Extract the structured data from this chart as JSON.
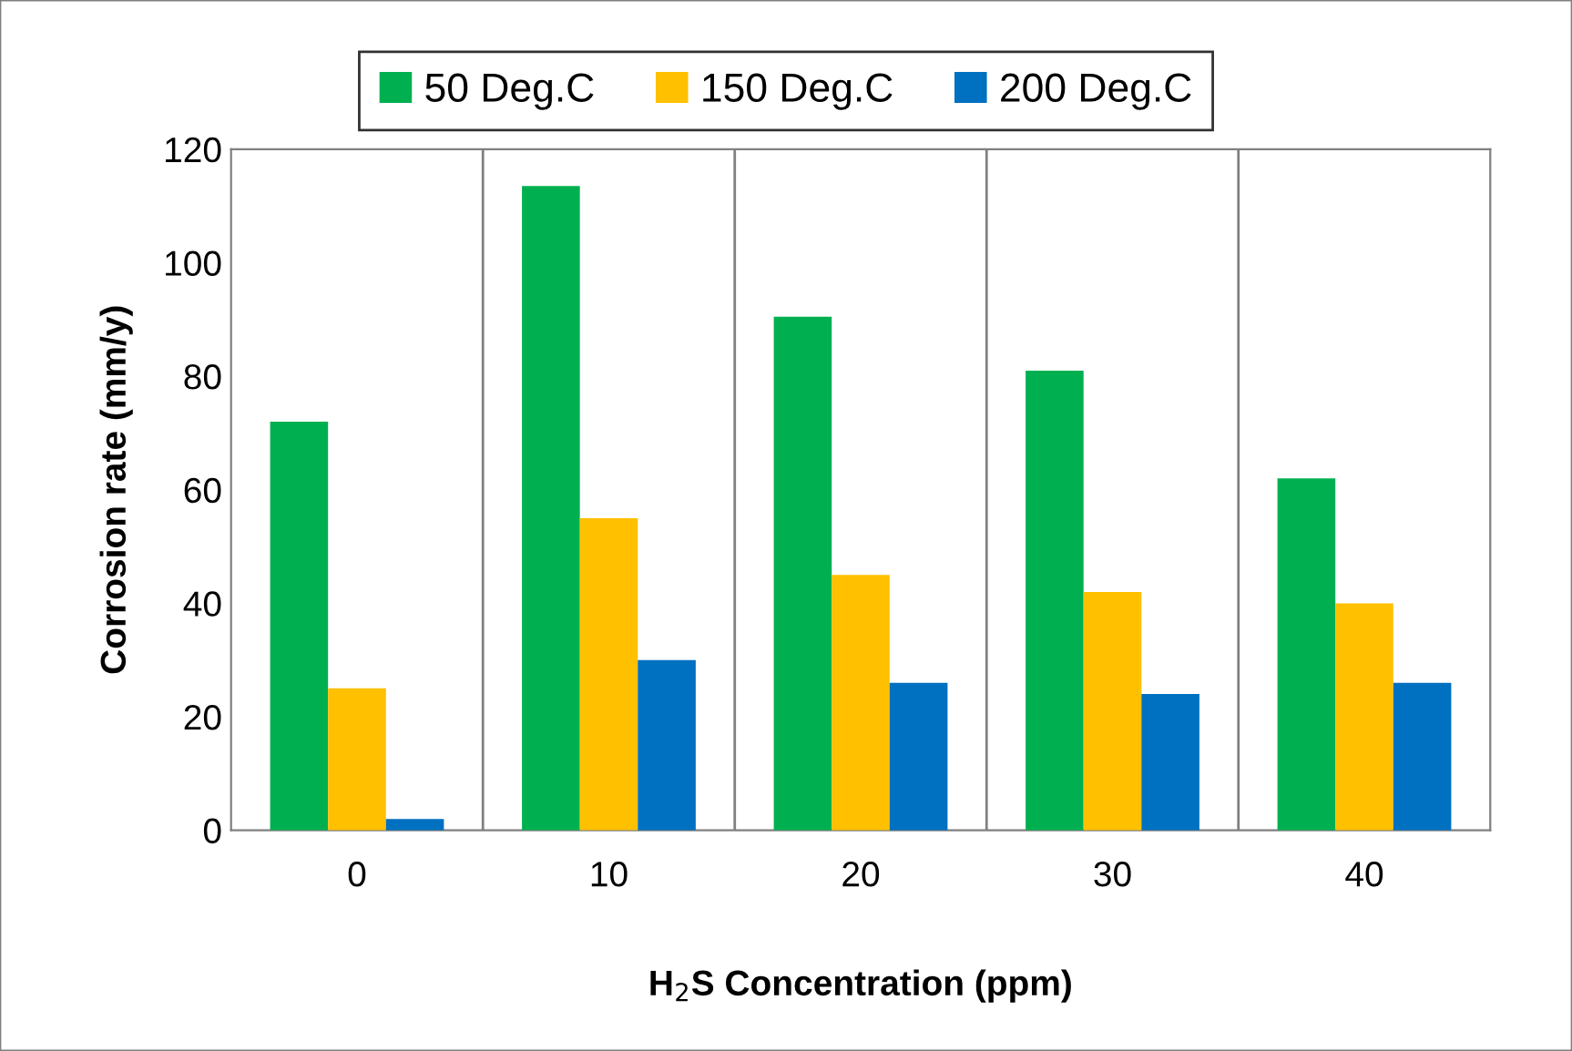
{
  "chart_data": {
    "type": "bar",
    "xlabel": "H$_{2}$S Concentration (ppm)",
    "ylabel": "Corrosion rate (mm/y)",
    "categories": [
      "0",
      "10",
      "20",
      "30",
      "40"
    ],
    "series": [
      {
        "name": "50 Deg.C",
        "color": "#00b050",
        "values": [
          72,
          113.5,
          90.5,
          81,
          62
        ]
      },
      {
        "name": "150 Deg.C",
        "color": "#ffc000",
        "values": [
          25,
          55,
          45,
          42,
          40
        ]
      },
      {
        "name": "200 Deg.C",
        "color": "#0070c0",
        "values": [
          2,
          30,
          26,
          24,
          26
        ]
      }
    ],
    "ylim": [
      0,
      120
    ],
    "yticks": [
      0,
      20,
      40,
      60,
      80,
      100,
      120
    ],
    "grid": "x",
    "legend": "top"
  }
}
